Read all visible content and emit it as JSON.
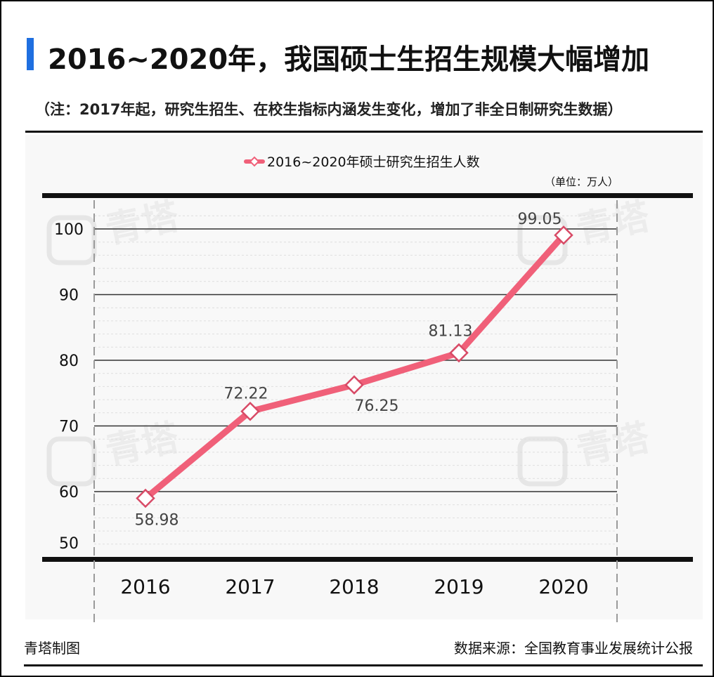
{
  "header": {
    "title": "2016~2020年，我国硕士生招生规模大幅增加",
    "note": "（注：2017年起，研究生招生、在校生指标内涵发生变化，增加了非全日制研究生数据）"
  },
  "chart_data": {
    "type": "line",
    "categories": [
      "2016",
      "2017",
      "2018",
      "2019",
      "2020"
    ],
    "series": [
      {
        "name": "2016~2020年硕士研究生招生人数",
        "values": [
          58.98,
          72.22,
          76.25,
          81.13,
          99.05
        ]
      }
    ],
    "data_labels": [
      "58.98",
      "72.22",
      "76.25",
      "81.13",
      "99.05"
    ],
    "y_ticks": [
      50,
      60,
      70,
      80,
      90,
      100
    ],
    "ylim": [
      50,
      105
    ],
    "unit_label": "（单位：万人）",
    "legend_position": "top-center",
    "grid": true,
    "line_color": "#f06079"
  },
  "watermark": {
    "text": "青塔"
  },
  "footer": {
    "credit": "青塔制图",
    "source": "数据来源：全国教育事业发展统计公报"
  }
}
